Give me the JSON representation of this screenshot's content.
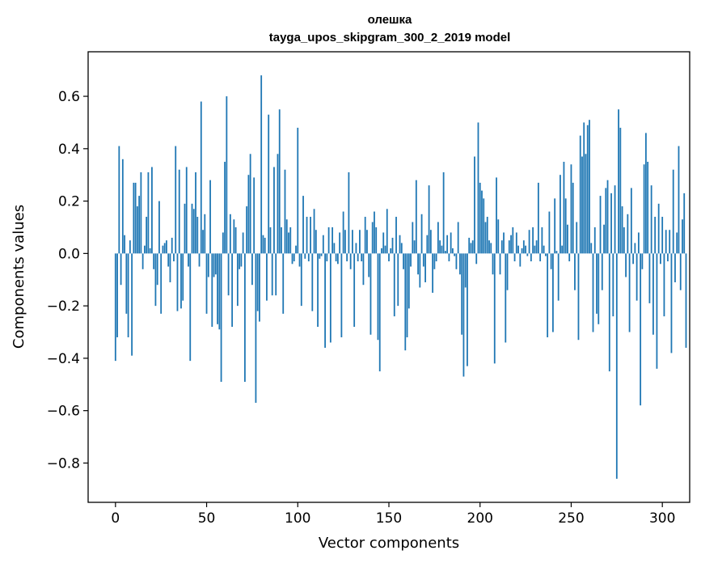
{
  "chart_data": {
    "type": "bar",
    "title": "олешка",
    "subtitle": "tayga_upos_skipgram_300_2_2019 model",
    "xlabel": "Vector components",
    "ylabel": "Components values",
    "xlim": [
      -15,
      315
    ],
    "ylim": [
      -0.95,
      0.77
    ],
    "xticks": [
      0,
      50,
      100,
      150,
      200,
      250,
      300
    ],
    "yticks": [
      -0.8,
      -0.6,
      -0.4,
      -0.2,
      0.0,
      0.2,
      0.4,
      0.6
    ],
    "ytick_labels": [
      "−0.8",
      "−0.6",
      "−0.4",
      "−0.2",
      "0.0",
      "0.2",
      "0.4",
      "0.6"
    ],
    "bar_color": "#1f77b4",
    "values": [
      -0.41,
      -0.32,
      0.41,
      -0.12,
      0.36,
      0.07,
      -0.23,
      -0.32,
      0.05,
      -0.39,
      0.27,
      0.27,
      0.18,
      0.22,
      0.31,
      -0.06,
      0.03,
      0.14,
      0.31,
      0.02,
      0.33,
      -0.06,
      -0.2,
      -0.12,
      0.2,
      -0.23,
      0.03,
      0.04,
      0.05,
      -0.05,
      -0.11,
      0.06,
      -0.03,
      0.41,
      -0.22,
      0.32,
      -0.21,
      -0.18,
      0.19,
      0.33,
      -0.05,
      -0.41,
      0.19,
      0.17,
      0.31,
      0.14,
      -0.05,
      0.58,
      0.09,
      0.15,
      -0.23,
      -0.09,
      0.28,
      -0.28,
      -0.09,
      -0.08,
      -0.27,
      -0.29,
      -0.49,
      0.08,
      0.35,
      0.6,
      -0.16,
      0.15,
      -0.28,
      0.13,
      0.1,
      -0.2,
      -0.06,
      -0.05,
      0.08,
      -0.49,
      0.18,
      0.3,
      0.38,
      -0.12,
      0.29,
      -0.57,
      -0.22,
      -0.26,
      0.68,
      0.07,
      0.06,
      -0.18,
      0.53,
      0.1,
      -0.16,
      0.33,
      -0.16,
      0.38,
      0.55,
      0.1,
      -0.23,
      0.32,
      0.13,
      0.08,
      0.1,
      -0.04,
      -0.03,
      0.03,
      0.48,
      -0.05,
      -0.2,
      0.22,
      -0.02,
      0.14,
      -0.03,
      0.14,
      -0.22,
      0.17,
      0.09,
      -0.28,
      -0.02,
      -0.01,
      0.07,
      -0.36,
      -0.03,
      0.1,
      -0.34,
      0.1,
      0.04,
      -0.03,
      -0.04,
      0.08,
      -0.32,
      0.16,
      0.09,
      -0.03,
      0.31,
      -0.06,
      0.09,
      -0.28,
      0.04,
      -0.03,
      0.09,
      -0.03,
      -0.12,
      0.14,
      0.09,
      -0.09,
      -0.31,
      0.12,
      0.16,
      0.1,
      -0.33,
      -0.45,
      0.02,
      0.08,
      0.03,
      0.17,
      -0.03,
      0.02,
      0.06,
      -0.24,
      0.14,
      -0.2,
      0.07,
      0.04,
      -0.06,
      -0.37,
      -0.32,
      -0.21,
      -0.05,
      0.12,
      0.05,
      0.28,
      -0.08,
      -0.13,
      0.15,
      -0.05,
      -0.11,
      0.07,
      0.26,
      0.09,
      -0.15,
      -0.06,
      -0.03,
      0.12,
      0.05,
      0.03,
      0.31,
      0.01,
      0.07,
      -0.03,
      0.08,
      0.02,
      -0.01,
      -0.06,
      0.12,
      -0.08,
      -0.31,
      -0.47,
      -0.13,
      -0.43,
      0.06,
      0.04,
      0.05,
      0.37,
      -0.04,
      0.5,
      0.27,
      0.24,
      0.21,
      0.12,
      0.14,
      0.05,
      0.04,
      -0.08,
      -0.42,
      0.29,
      0.13,
      -0.08,
      0.05,
      0.08,
      -0.34,
      -0.14,
      0.05,
      0.07,
      0.1,
      -0.03,
      0.08,
      0.03,
      -0.05,
      0.02,
      0.05,
      0.03,
      -0.01,
      0.09,
      -0.03,
      0.1,
      0.03,
      0.05,
      0.27,
      -0.03,
      0.1,
      0.03,
      -0.01,
      -0.32,
      0.16,
      -0.06,
      -0.3,
      0.21,
      0.01,
      -0.18,
      0.3,
      0.03,
      0.35,
      0.21,
      0.11,
      -0.03,
      0.34,
      0.27,
      -0.14,
      0.12,
      -0.33,
      0.45,
      0.37,
      0.5,
      0.38,
      0.49,
      0.51,
      0.04,
      -0.3,
      0.1,
      -0.23,
      -0.27,
      0.22,
      -0.14,
      0.11,
      0.25,
      0.28,
      -0.45,
      0.23,
      -0.24,
      0.26,
      -0.86,
      0.55,
      0.48,
      0.18,
      0.1,
      -0.09,
      0.15,
      -0.3,
      0.25,
      -0.04,
      0.04,
      -0.18,
      0.08,
      -0.58,
      -0.06,
      0.34,
      0.46,
      0.35,
      -0.19,
      0.26,
      -0.31,
      0.14,
      -0.44,
      0.19,
      -0.04,
      0.14,
      -0.24,
      0.09,
      -0.03,
      0.09,
      -0.38,
      0.32,
      -0.11,
      0.08,
      0.41,
      -0.14,
      0.13,
      0.23,
      -0.36
    ]
  }
}
